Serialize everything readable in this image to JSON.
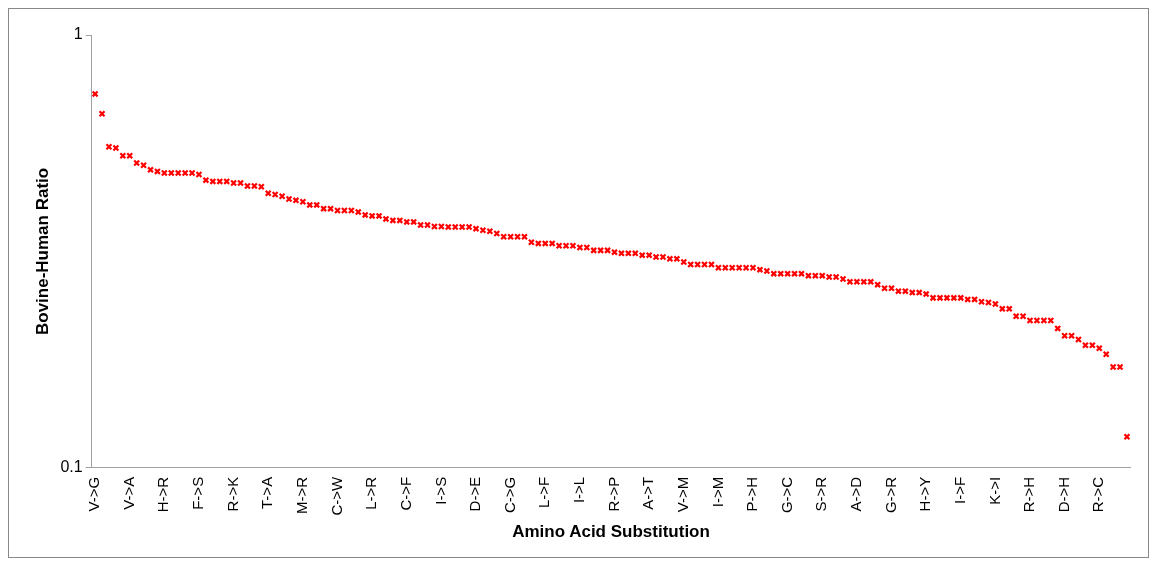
{
  "chart_data": {
    "type": "scatter",
    "xlabel": "Amino Acid Substitution",
    "ylabel": "Bovine-Human Ratio",
    "categories": [
      "V->G",
      null,
      null,
      null,
      null,
      "V->A",
      null,
      null,
      null,
      null,
      "H->R",
      null,
      null,
      null,
      null,
      "F->S",
      null,
      null,
      null,
      null,
      "R->K",
      null,
      null,
      null,
      null,
      "T->A",
      null,
      null,
      null,
      null,
      "M->R",
      null,
      null,
      null,
      null,
      "C->W",
      null,
      null,
      null,
      null,
      "L->R",
      null,
      null,
      null,
      null,
      "C->F",
      null,
      null,
      null,
      null,
      "I->S",
      null,
      null,
      null,
      null,
      "D->E",
      null,
      null,
      null,
      null,
      "C->G",
      null,
      null,
      null,
      null,
      "L->F",
      null,
      null,
      null,
      null,
      "I->L",
      null,
      null,
      null,
      null,
      "R->P",
      null,
      null,
      null,
      null,
      "A->T",
      null,
      null,
      null,
      null,
      "V->M",
      null,
      null,
      null,
      null,
      "I->M",
      null,
      null,
      null,
      null,
      "P->H",
      null,
      null,
      null,
      null,
      "G->C",
      null,
      null,
      null,
      null,
      "S->R",
      null,
      null,
      null,
      null,
      "A->D",
      null,
      null,
      null,
      null,
      "G->R",
      null,
      null,
      null,
      null,
      "H->Y",
      null,
      null,
      null,
      null,
      "I->F",
      null,
      null,
      null,
      null,
      "K->I",
      null,
      null,
      null,
      null,
      "R->H",
      null,
      null,
      null,
      null,
      "D->H",
      null,
      null,
      null,
      null,
      "R->C",
      null,
      null,
      null,
      null
    ],
    "series": [
      {
        "color": "#ff0000",
        "values": [
          0.731,
          0.658,
          0.552,
          0.548,
          0.526,
          0.526,
          0.506,
          0.5,
          0.488,
          0.484,
          0.48,
          0.48,
          0.48,
          0.48,
          0.48,
          0.476,
          0.462,
          0.459,
          0.459,
          0.459,
          0.455,
          0.455,
          0.448,
          0.448,
          0.446,
          0.431,
          0.428,
          0.424,
          0.418,
          0.415,
          0.412,
          0.405,
          0.405,
          0.397,
          0.397,
          0.393,
          0.393,
          0.393,
          0.39,
          0.384,
          0.382,
          0.382,
          0.376,
          0.373,
          0.373,
          0.37,
          0.37,
          0.364,
          0.364,
          0.361,
          0.361,
          0.36,
          0.36,
          0.36,
          0.36,
          0.357,
          0.354,
          0.352,
          0.348,
          0.342,
          0.342,
          0.342,
          0.342,
          0.332,
          0.33,
          0.33,
          0.33,
          0.326,
          0.326,
          0.326,
          0.323,
          0.323,
          0.318,
          0.318,
          0.318,
          0.315,
          0.313,
          0.313,
          0.313,
          0.31,
          0.31,
          0.307,
          0.307,
          0.304,
          0.304,
          0.299,
          0.295,
          0.295,
          0.295,
          0.295,
          0.29,
          0.29,
          0.29,
          0.29,
          0.29,
          0.29,
          0.287,
          0.285,
          0.281,
          0.281,
          0.281,
          0.281,
          0.281,
          0.278,
          0.278,
          0.278,
          0.276,
          0.276,
          0.273,
          0.269,
          0.269,
          0.269,
          0.269,
          0.265,
          0.26,
          0.26,
          0.256,
          0.256,
          0.254,
          0.254,
          0.252,
          0.247,
          0.247,
          0.247,
          0.247,
          0.247,
          0.245,
          0.245,
          0.242,
          0.241,
          0.239,
          0.233,
          0.233,
          0.224,
          0.224,
          0.219,
          0.219,
          0.219,
          0.219,
          0.21,
          0.202,
          0.202,
          0.198,
          0.192,
          0.192,
          0.189,
          0.183,
          0.171,
          0.171,
          0.118
        ]
      }
    ],
    "log": true,
    "ylim": [
      0.1,
      1
    ],
    "yticks": [
      0.1,
      1
    ],
    "marker": "cross"
  }
}
